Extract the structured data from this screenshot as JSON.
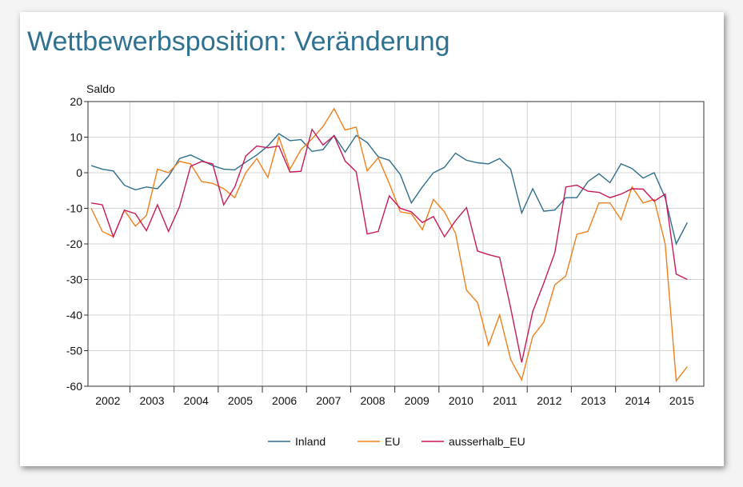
{
  "chart_data": {
    "type": "line",
    "title": "Wettbewerbsposition: Veränderung",
    "y_label": "Saldo",
    "x": [
      2002.125,
      2002.375,
      2002.625,
      2002.875,
      2003.125,
      2003.375,
      2003.625,
      2003.875,
      2004.125,
      2004.375,
      2004.625,
      2004.875,
      2005.125,
      2005.375,
      2005.625,
      2005.875,
      2006.125,
      2006.375,
      2006.625,
      2006.875,
      2007.125,
      2007.375,
      2007.625,
      2007.875,
      2008.125,
      2008.375,
      2008.625,
      2008.875,
      2009.125,
      2009.375,
      2009.625,
      2009.875,
      2010.125,
      2010.375,
      2010.625,
      2010.875,
      2011.125,
      2011.375,
      2011.625,
      2011.875,
      2012.125,
      2012.375,
      2012.625,
      2012.875,
      2013.125,
      2013.375,
      2013.625,
      2013.875,
      2014.125,
      2014.375,
      2014.625,
      2014.875,
      2015.125,
      2015.375,
      2015.625
    ],
    "series": [
      {
        "name": "Inland",
        "color": "#2e6e8e",
        "values": [
          2,
          1,
          0.5,
          -3.5,
          -4.8,
          -4,
          -4.5,
          -1,
          4,
          5,
          3.5,
          2,
          1,
          0.8,
          3,
          5,
          7.5,
          11,
          9,
          9.3,
          6,
          6.5,
          10.5,
          5.8,
          10.5,
          8.5,
          4.5,
          3.5,
          -0.5,
          -8.5,
          -4,
          0,
          1.5,
          5.5,
          3.5,
          2.8,
          2.5,
          4,
          1,
          -11.3,
          -4.5,
          -10.8,
          -10.5,
          -7,
          -7,
          -2.5,
          -0.3,
          -2.8,
          2.5,
          1.2,
          -1.5,
          0,
          -7,
          -20,
          -14
        ]
      },
      {
        "name": "EU",
        "color": "#f07f1a",
        "values": [
          -10,
          -16.5,
          -18,
          -10.5,
          -15,
          -12,
          1,
          0,
          3.2,
          2.5,
          -2.5,
          -3,
          -4.5,
          -7,
          0,
          4,
          -1.3,
          10,
          1,
          6.5,
          9.5,
          13,
          18,
          12,
          12.8,
          0.5,
          4.2,
          -3,
          -11,
          -11.5,
          -16,
          -7.5,
          -11,
          -17,
          -33,
          -36.5,
          -48.5,
          -40,
          -52.5,
          -58.2,
          -46,
          -42,
          -31.5,
          -29,
          -17.3,
          -16.5,
          -8.5,
          -8.5,
          -13.2,
          -4,
          -8.5,
          -7.5,
          -20,
          -58.5,
          -54.5
        ]
      },
      {
        "name": "ausserhalb_EU",
        "color": "#c8195a",
        "values": [
          -8.5,
          -9,
          -18,
          -10.5,
          -11.5,
          -16.3,
          -9,
          -16.5,
          -9.5,
          1.8,
          3.2,
          2.5,
          -9,
          -4,
          4.7,
          7.5,
          7,
          7.5,
          0.2,
          0.4,
          12.2,
          7.8,
          10.4,
          3.3,
          0.3,
          -17.2,
          -16.5,
          -6.5,
          -10,
          -11,
          -14,
          -12.3,
          -18,
          -13.5,
          -9.8,
          -22,
          -23,
          -23.8,
          -38,
          -53.3,
          -39,
          -31,
          -22.5,
          -4,
          -3.5,
          -5.2,
          -5.5,
          -7,
          -6,
          -4.5,
          -4.6,
          -8,
          -6,
          -28.5,
          -30
        ]
      }
    ],
    "xlim": [
      2002.05,
      2016
    ],
    "xticks": [
      {
        "value": 2002.5,
        "label": "2002"
      },
      {
        "value": 2003.5,
        "label": "2003"
      },
      {
        "value": 2004.5,
        "label": "2004"
      },
      {
        "value": 2005.5,
        "label": "2005"
      },
      {
        "value": 2006.5,
        "label": "2006"
      },
      {
        "value": 2007.5,
        "label": "2007"
      },
      {
        "value": 2008.5,
        "label": "2008"
      },
      {
        "value": 2009.5,
        "label": "2009"
      },
      {
        "value": 2010.5,
        "label": "2010"
      },
      {
        "value": 2011.5,
        "label": "2011"
      },
      {
        "value": 2012.5,
        "label": "2012"
      },
      {
        "value": 2013.5,
        "label": "2013"
      },
      {
        "value": 2014.5,
        "label": "2014"
      },
      {
        "value": 2015.5,
        "label": "2015"
      }
    ],
    "ylim": [
      -60,
      20
    ],
    "yticks": [
      -60,
      -50,
      -40,
      -30,
      -20,
      -10,
      0,
      10,
      20
    ],
    "grid": true,
    "legend": "bottom"
  }
}
